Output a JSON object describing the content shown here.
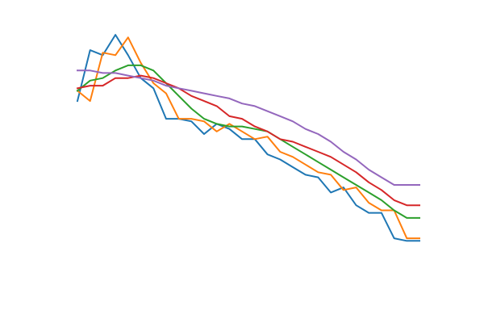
{
  "chart_data": {
    "type": "line",
    "title": "",
    "xlabel": "",
    "ylabel": "",
    "axes_visible": false,
    "grid": false,
    "legend": "none",
    "xlim": [
      0,
      27
    ],
    "ylim": [
      0,
      1
    ],
    "x": [
      0,
      1,
      2,
      3,
      4,
      5,
      6,
      7,
      8,
      9,
      10,
      11,
      12,
      13,
      14,
      15,
      16,
      17,
      18,
      19,
      20,
      21,
      22,
      23,
      24,
      25,
      26,
      27
    ],
    "series": [
      {
        "color": "#1f77b4",
        "values": [
          0.73,
          0.93,
          0.91,
          0.99,
          0.91,
          0.82,
          0.78,
          0.66,
          0.66,
          0.65,
          0.6,
          0.64,
          0.62,
          0.58,
          0.58,
          0.52,
          0.5,
          0.47,
          0.44,
          0.43,
          0.37,
          0.39,
          0.32,
          0.29,
          0.29,
          0.19,
          0.18,
          0.18
        ]
      },
      {
        "color": "#ff7f0e",
        "values": [
          0.77,
          0.73,
          0.92,
          0.91,
          0.98,
          0.88,
          0.8,
          0.76,
          0.66,
          0.66,
          0.65,
          0.61,
          0.64,
          0.61,
          0.58,
          0.59,
          0.53,
          0.51,
          0.48,
          0.45,
          0.44,
          0.38,
          0.39,
          0.33,
          0.3,
          0.3,
          0.19,
          0.19
        ]
      },
      {
        "color": "#2ca02c",
        "values": [
          0.77,
          0.81,
          0.82,
          0.85,
          0.87,
          0.87,
          0.85,
          0.8,
          0.75,
          0.7,
          0.66,
          0.64,
          0.63,
          0.63,
          0.62,
          0.61,
          0.58,
          0.55,
          0.52,
          0.49,
          0.46,
          0.43,
          0.4,
          0.37,
          0.34,
          0.3,
          0.27,
          0.27
        ]
      },
      {
        "color": "#d62728",
        "values": [
          0.78,
          0.79,
          0.79,
          0.82,
          0.82,
          0.83,
          0.82,
          0.8,
          0.78,
          0.75,
          0.73,
          0.71,
          0.67,
          0.66,
          0.63,
          0.61,
          0.58,
          0.57,
          0.55,
          0.53,
          0.51,
          0.48,
          0.45,
          0.41,
          0.38,
          0.34,
          0.32,
          0.32
        ]
      },
      {
        "color": "#9467bd",
        "values": [
          0.85,
          0.85,
          0.84,
          0.84,
          0.83,
          0.82,
          0.81,
          0.79,
          0.78,
          0.77,
          0.76,
          0.75,
          0.74,
          0.72,
          0.71,
          0.69,
          0.67,
          0.65,
          0.62,
          0.6,
          0.57,
          0.53,
          0.5,
          0.46,
          0.43,
          0.4,
          0.4,
          0.4
        ]
      }
    ]
  }
}
